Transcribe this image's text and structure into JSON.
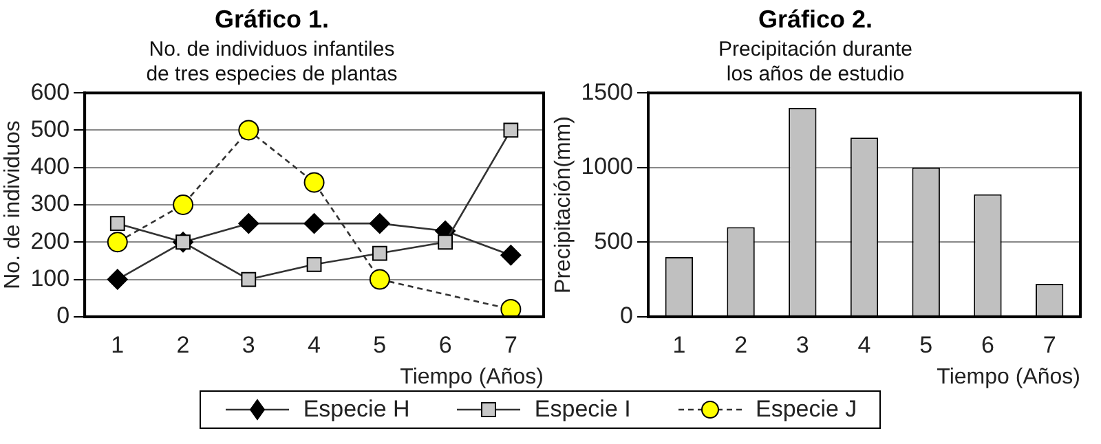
{
  "chart_data": [
    {
      "type": "line",
      "title": "Gráfico 1.",
      "subtitle": "No. de individuos infantiles\nde tres especies de plantas",
      "xlabel": "Tiempo (Años)",
      "ylabel": "No. de individuos",
      "categories": [
        "1",
        "2",
        "3",
        "4",
        "5",
        "6",
        "7"
      ],
      "series": [
        {
          "name": "Especie H",
          "color": "#000000",
          "marker": "diamond",
          "line_style": "solid",
          "values": [
            100,
            200,
            250,
            250,
            250,
            230,
            165
          ]
        },
        {
          "name": "Especie I",
          "color": "#c8c8c8",
          "marker": "square",
          "line_style": "solid",
          "values": [
            250,
            200,
            100,
            140,
            170,
            200,
            500
          ]
        },
        {
          "name": "Especie J",
          "color": "#ffff00",
          "marker": "circle",
          "line_style": "dashed",
          "values": [
            200,
            300,
            500,
            360,
            100,
            null,
            20
          ]
        }
      ],
      "ylim": [
        0,
        600
      ],
      "yticks": [
        0,
        100,
        200,
        300,
        400,
        500,
        600
      ],
      "grid": "y",
      "legend": "bottom"
    },
    {
      "type": "bar",
      "title": "Gráfico 2.",
      "subtitle": "Precipitación durante\nlos años de estudio",
      "xlabel": "Tiempo (Años)",
      "ylabel": "Precipitación(mm)",
      "categories": [
        "1",
        "2",
        "3",
        "4",
        "5",
        "6",
        "7"
      ],
      "values": [
        400,
        600,
        1400,
        1200,
        1000,
        820,
        220
      ],
      "color": "#c0c0c0",
      "ylim": [
        0,
        1500
      ],
      "yticks": [
        0,
        500,
        1000,
        1500
      ],
      "grid": "y"
    }
  ]
}
